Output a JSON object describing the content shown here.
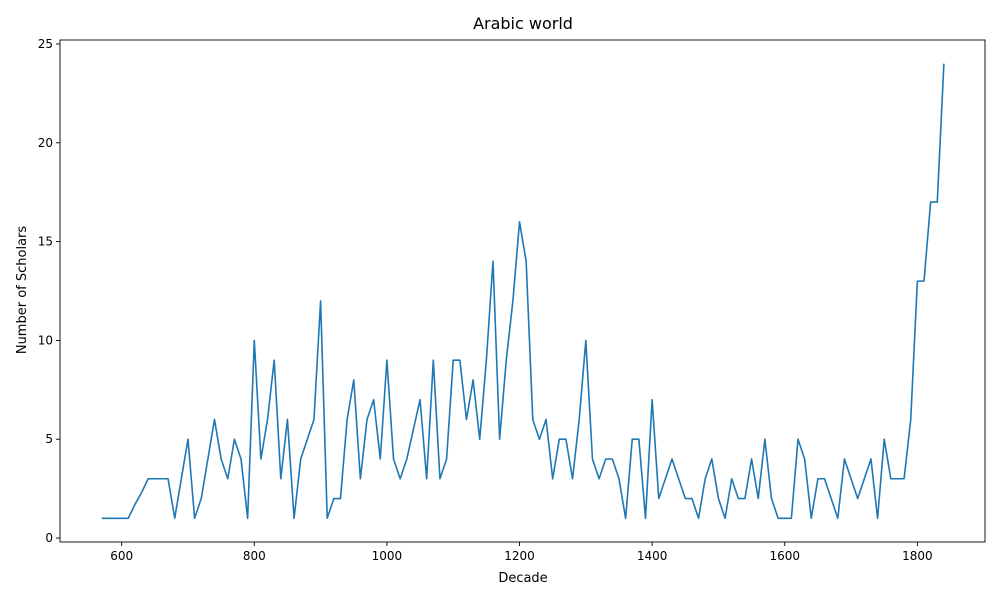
{
  "colors": {
    "line": "#1f77b4",
    "axes": "#000000",
    "background": "#ffffff"
  },
  "chart_data": {
    "type": "line",
    "title": "Arabic world",
    "xlabel": "Decade",
    "ylabel": "Number of Scholars",
    "xlim": [
      507,
      1902
    ],
    "ylim": [
      -0.2,
      25.2
    ],
    "xticks": [
      600,
      800,
      1000,
      1200,
      1400,
      1600,
      1800
    ],
    "yticks": [
      0,
      5,
      10,
      15,
      20,
      25
    ],
    "xtick_labels": [
      "600",
      "800",
      "1000",
      "1200",
      "1400",
      "1600",
      "1800"
    ],
    "ytick_labels": [
      "0",
      "5",
      "10",
      "15",
      "20",
      "25"
    ],
    "grid": false,
    "legend": null,
    "series": [
      {
        "x": [
          570,
          580,
          590,
          600,
          610,
          620,
          630,
          640,
          650,
          660,
          670,
          680,
          690,
          700,
          710,
          720,
          730,
          740,
          750,
          760,
          770,
          780,
          790,
          800,
          810,
          820,
          830,
          840,
          850,
          860,
          870,
          880,
          890,
          900,
          910,
          920,
          930,
          940,
          950,
          960,
          970,
          980,
          990,
          1000,
          1010,
          1020,
          1030,
          1040,
          1050,
          1060,
          1070,
          1080,
          1090,
          1100,
          1110,
          1120,
          1130,
          1140,
          1150,
          1160,
          1170,
          1180,
          1190,
          1200,
          1210,
          1220,
          1230,
          1240,
          1250,
          1260,
          1270,
          1280,
          1290,
          1300,
          1310,
          1320,
          1330,
          1340,
          1350,
          1360,
          1370,
          1380,
          1390,
          1400,
          1410,
          1420,
          1430,
          1440,
          1450,
          1460,
          1470,
          1480,
          1490,
          1500,
          1510,
          1520,
          1530,
          1540,
          1550,
          1560,
          1570,
          1580,
          1590,
          1600,
          1610,
          1620,
          1630,
          1640,
          1650,
          1660,
          1670,
          1680,
          1690,
          1700,
          1710,
          1720,
          1730,
          1740,
          1750,
          1760,
          1770,
          1780,
          1790,
          1800,
          1810,
          1820,
          1830,
          1840
        ],
        "y": [
          1,
          1,
          1,
          1,
          1,
          1.7,
          2.3,
          3,
          3,
          3,
          3,
          1,
          3,
          5,
          1,
          2,
          4,
          6,
          4,
          3,
          5,
          4,
          1,
          10,
          4,
          6,
          9,
          3,
          6,
          1,
          4,
          5,
          6,
          12,
          1,
          2,
          2,
          6,
          8,
          3,
          6,
          7,
          4,
          9,
          4,
          3,
          4,
          5.5,
          7,
          3,
          9,
          3,
          4,
          9,
          9,
          6,
          8,
          5,
          9,
          14,
          5,
          9,
          12,
          16,
          14,
          6,
          5,
          6,
          3,
          5,
          5,
          3,
          6,
          10,
          4,
          3,
          4,
          4,
          3,
          1,
          5,
          5,
          1,
          7,
          2,
          3,
          4,
          3,
          2,
          2,
          1,
          3,
          4,
          2,
          1,
          3,
          2,
          2,
          4,
          2,
          5,
          2,
          1,
          1,
          1,
          5,
          4,
          1,
          3,
          3,
          2,
          1,
          4,
          3,
          2,
          3,
          4,
          1,
          5,
          3,
          3,
          3,
          6,
          13,
          13,
          17,
          17,
          24
        ]
      }
    ]
  }
}
